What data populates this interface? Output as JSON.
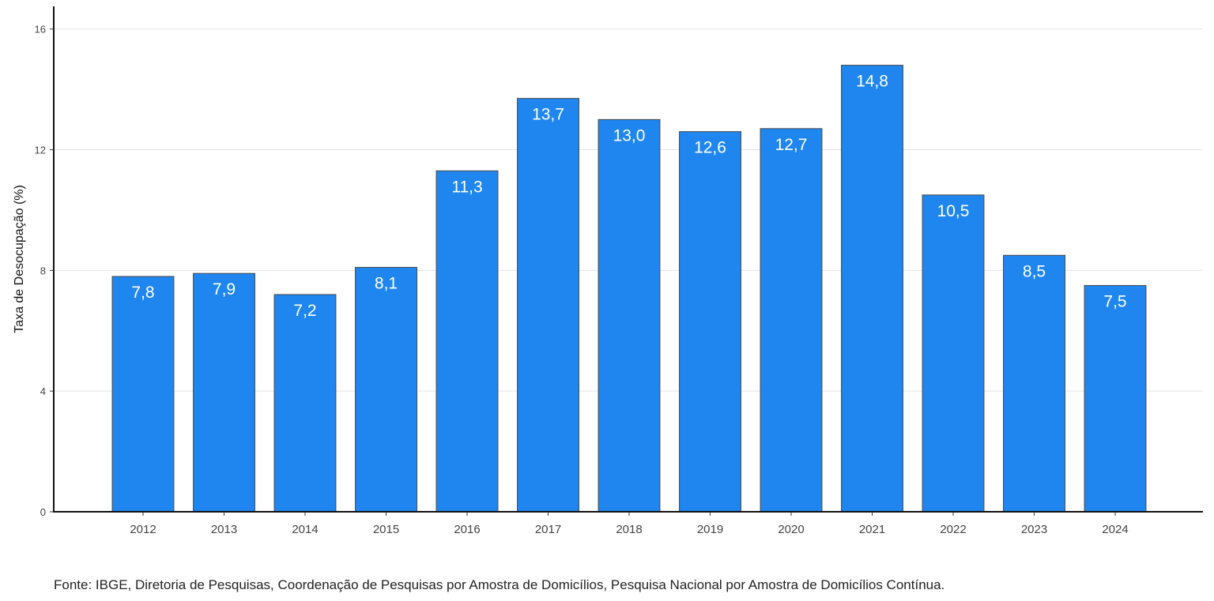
{
  "chart_data": {
    "type": "bar",
    "categories": [
      "2012",
      "2013",
      "2014",
      "2015",
      "2016",
      "2017",
      "2018",
      "2019",
      "2020",
      "2021",
      "2022",
      "2023",
      "2024"
    ],
    "values": [
      7.8,
      7.9,
      7.2,
      8.1,
      11.3,
      13.7,
      13.0,
      12.6,
      12.7,
      14.8,
      10.5,
      8.5,
      7.5
    ],
    "value_labels": [
      "7,8",
      "7,9",
      "7,2",
      "8,1",
      "11,3",
      "13,7",
      "13,0",
      "12,6",
      "12,7",
      "14,8",
      "10,5",
      "8,5",
      "7,5"
    ],
    "title": "",
    "xlabel": "",
    "ylabel": "Taxa de Desocupação (%)",
    "ylim": [
      0,
      16.7
    ],
    "yticks": [
      0,
      4,
      8,
      12,
      16
    ],
    "grid": "horizontal",
    "bar_color": "#1E86EE",
    "bar_edge_color": "#4a4a4a",
    "label_color": "#FFFFFF"
  },
  "source_note": "Fonte: IBGE, Diretoria de Pesquisas, Coordenação de Pesquisas por Amostra de Domicílios, Pesquisa Nacional por Amostra de Domicílios Contínua."
}
